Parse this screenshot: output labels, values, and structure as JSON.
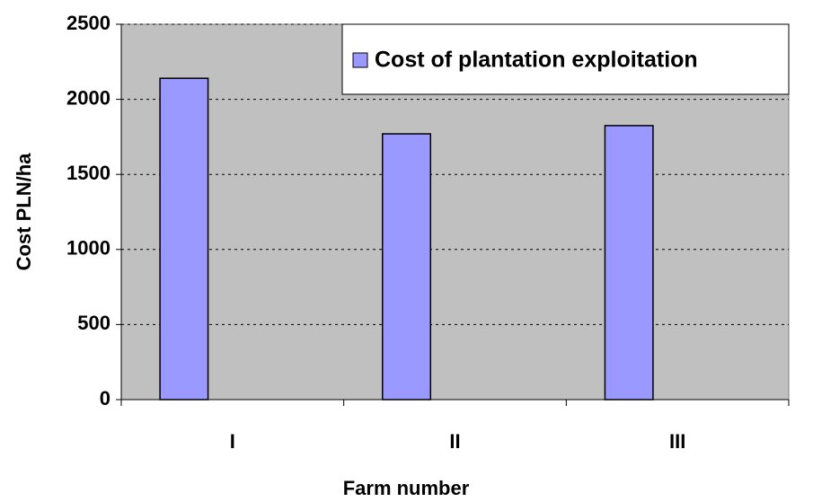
{
  "chart_data": {
    "type": "bar",
    "x_label": "Farm number",
    "y_label": "Cost PLN/ha",
    "categories": [
      "I",
      "II",
      "III"
    ],
    "series": [
      {
        "name": "Cost of plantation exploitation",
        "color": "#9999ff",
        "values": [
          2140,
          1770,
          1825
        ]
      }
    ],
    "ylim": [
      0,
      2500
    ],
    "yticks": [
      0,
      500,
      1000,
      1500,
      2000,
      2500
    ],
    "grid": true,
    "legend": "upper right"
  }
}
